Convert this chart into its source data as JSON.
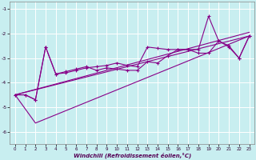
{
  "bg_color": "#c8eef0",
  "line_color": "#880088",
  "xlabel": "Windchill (Refroidissement éolien,°C)",
  "ylim": [
    -6.5,
    -0.7
  ],
  "xlim": [
    -0.5,
    23.5
  ],
  "yticks": [
    -6,
    -5,
    -4,
    -3,
    -2,
    -1
  ],
  "xticks": [
    0,
    1,
    2,
    3,
    4,
    5,
    6,
    7,
    8,
    9,
    10,
    11,
    12,
    13,
    14,
    15,
    16,
    17,
    18,
    19,
    20,
    21,
    22,
    23
  ],
  "series1_x": [
    0,
    1,
    2,
    3,
    4,
    5,
    6,
    7,
    8,
    9,
    10,
    11,
    12,
    13,
    14,
    15,
    16,
    17,
    18,
    19,
    20,
    21,
    22,
    23
  ],
  "series1_y": [
    -4.5,
    -4.5,
    -4.7,
    -2.55,
    -3.65,
    -3.55,
    -3.45,
    -3.35,
    -3.5,
    -3.4,
    -3.45,
    -3.5,
    -3.5,
    -3.15,
    -3.2,
    -2.9,
    -2.65,
    -2.65,
    -2.8,
    -2.8,
    -2.3,
    -2.5,
    -3.0,
    -2.1
  ],
  "series2_x": [
    0,
    1,
    2,
    3,
    4,
    5,
    6,
    7,
    8,
    9,
    10,
    11,
    12,
    13,
    14,
    15,
    16,
    17,
    18,
    19,
    20,
    21,
    22,
    23
  ],
  "series2_y": [
    -4.5,
    -4.5,
    -4.7,
    -2.55,
    -3.65,
    -3.6,
    -3.5,
    -3.4,
    -3.35,
    -3.3,
    -3.2,
    -3.3,
    -3.35,
    -2.55,
    -2.6,
    -2.65,
    -2.65,
    -2.65,
    -2.65,
    -1.3,
    -2.3,
    -2.55,
    -3.0,
    -2.1
  ],
  "trend1_x": [
    0,
    23
  ],
  "trend1_y": [
    -4.5,
    -2.1
  ],
  "trend2_x": [
    0,
    2,
    23
  ],
  "trend2_y": [
    -4.5,
    -5.65,
    -2.1
  ],
  "trend3_x": [
    0,
    23
  ],
  "trend3_y": [
    -4.5,
    -1.95
  ]
}
